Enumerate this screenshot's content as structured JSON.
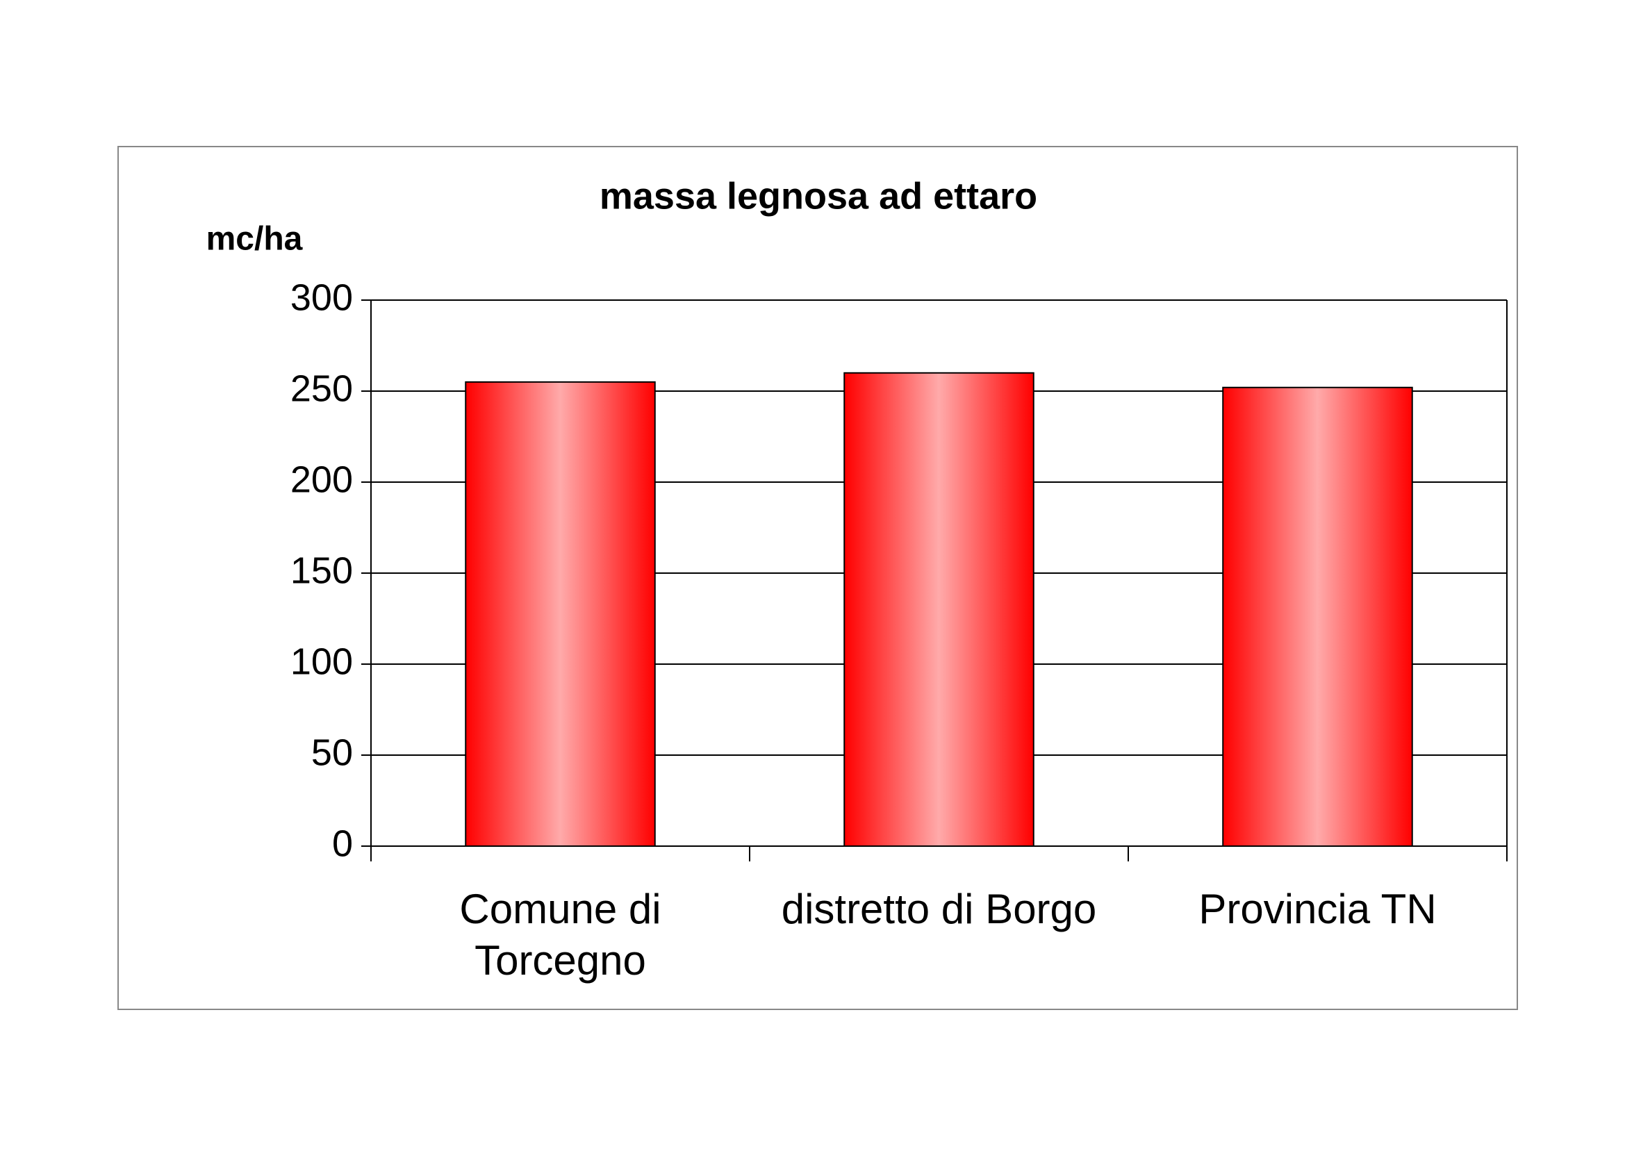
{
  "chart_data": {
    "type": "bar",
    "title": "massa legnosa ad ettaro",
    "y_label": "mc/ha",
    "categories": [
      "Comune di Torcegno",
      "distretto di Borgo",
      "Provincia TN"
    ],
    "values": [
      255,
      260,
      252
    ],
    "color": "#ff0000",
    "ylim": [
      0,
      300
    ],
    "yticks": [
      0,
      50,
      100,
      150,
      200,
      250,
      300
    ],
    "grid": true
  }
}
